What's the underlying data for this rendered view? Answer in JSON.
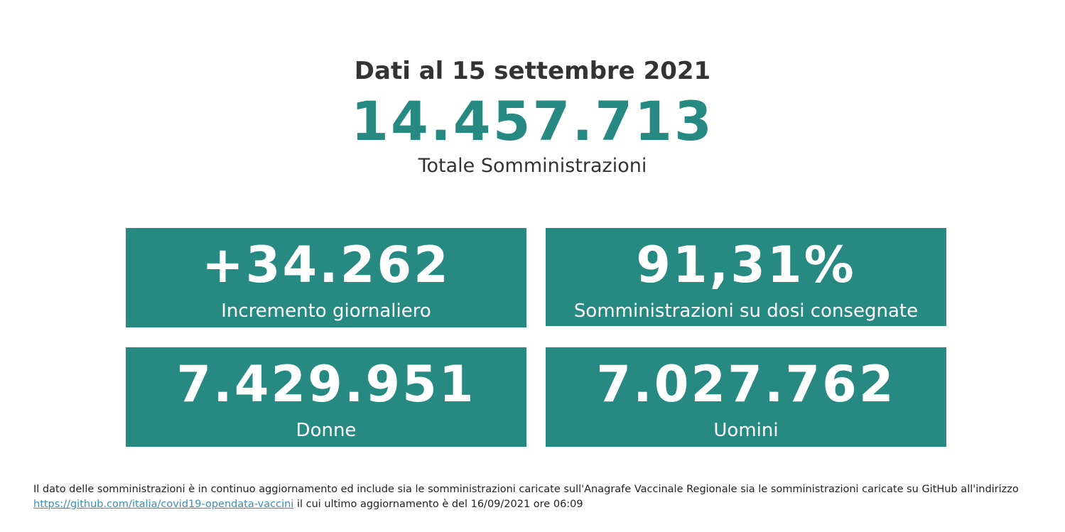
{
  "header": {
    "date_line": "Dati al 15 settembre 2021",
    "total_value": "14.457.713",
    "total_label": "Totale Somministrazioni"
  },
  "tiles": [
    {
      "value": "+34.262",
      "label": "Incremento giornaliero"
    },
    {
      "value": "91,31%",
      "label": "Somministrazioni su dosi consegnate"
    },
    {
      "value": "7.429.951",
      "label": "Donne"
    },
    {
      "value": "7.027.762",
      "label": "Uomini"
    }
  ],
  "footnote": {
    "text_before": "Il dato delle somministrazioni è in continuo aggiornamento ed include sia le somministrazioni caricate sull'Anagrafe Vaccinale Regionale sia le somministrazioni caricate su GitHub all'indirizzo",
    "link_text": "https://github.com/italia/covid19-opendata-vaccini",
    "text_after": "il cui ultimo aggiornamento è del 16/09/2021 ore 06:09"
  },
  "colors": {
    "accent": "#268a82",
    "text": "#333333",
    "link": "#3a8fb7"
  }
}
